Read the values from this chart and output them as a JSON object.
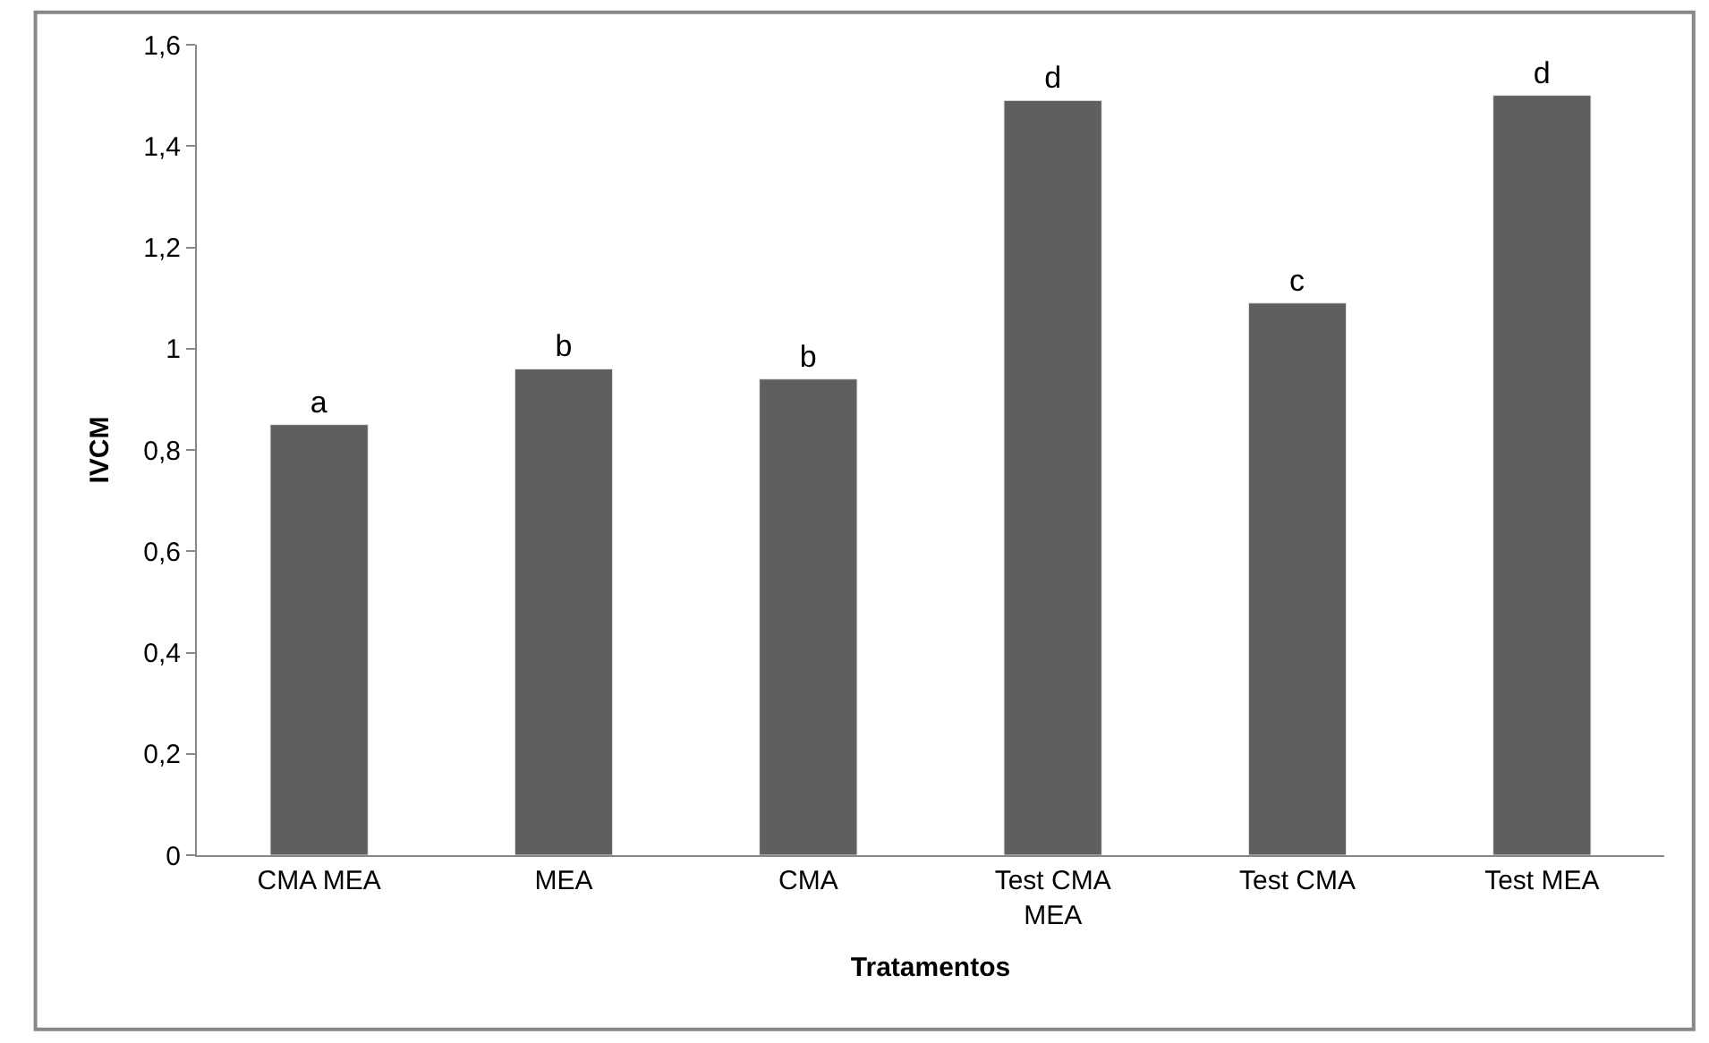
{
  "chart_data": {
    "type": "bar",
    "xlabel": "Tratamentos",
    "ylabel": "IVCM",
    "categories": [
      "CMA MEA",
      "MEA",
      "CMA",
      "Test CMA MEA",
      "Test CMA",
      "Test MEA"
    ],
    "values": [
      0.85,
      0.96,
      0.94,
      1.49,
      1.09,
      1.5
    ],
    "value_labels": [
      "a",
      "b",
      "b",
      "d",
      "c",
      "d"
    ],
    "color": "#5f5f5f",
    "ylim": [
      0,
      1.6
    ],
    "yticks": [
      {
        "value": 0,
        "label": "0"
      },
      {
        "value": 0.2,
        "label": "0,2"
      },
      {
        "value": 0.4,
        "label": "0,4"
      },
      {
        "value": 0.6,
        "label": "0,6"
      },
      {
        "value": 0.8,
        "label": "0,8"
      },
      {
        "value": 1,
        "label": "1"
      },
      {
        "value": 1.2,
        "label": "1,2"
      },
      {
        "value": 1.4,
        "label": "1,4"
      },
      {
        "value": 1.6,
        "label": "1,6"
      }
    ],
    "grid": false
  }
}
